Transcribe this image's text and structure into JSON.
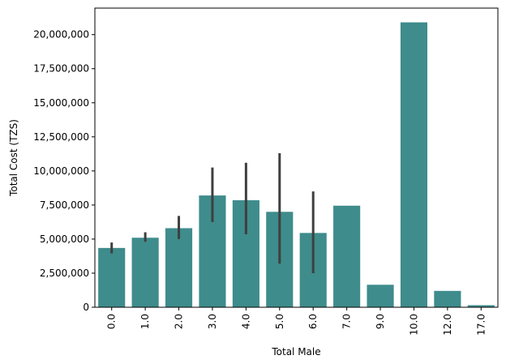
{
  "chart_data": {
    "type": "bar",
    "title": "",
    "xlabel": "Total Male",
    "ylabel": "Total Cost (TZS)",
    "categories": [
      "0.0",
      "1.0",
      "2.0",
      "3.0",
      "4.0",
      "5.0",
      "6.0",
      "7.0",
      "9.0",
      "10.0",
      "12.0",
      "17.0"
    ],
    "values": [
      4350000,
      5100000,
      5800000,
      8200000,
      7850000,
      7000000,
      5450000,
      7450000,
      1650000,
      20900000,
      1200000,
      150000
    ],
    "error_bars": [
      [
        3950000,
        4750000
      ],
      [
        4800000,
        5500000
      ],
      [
        5000000,
        6700000
      ],
      [
        6250000,
        10250000
      ],
      [
        5350000,
        10600000
      ],
      [
        3200000,
        11300000
      ],
      [
        2500000,
        8500000
      ],
      null,
      null,
      null,
      null,
      null
    ],
    "ylim": [
      0,
      21945000
    ],
    "yticks": [
      0,
      2500000,
      5000000,
      7500000,
      10000000,
      12500000,
      15000000,
      17500000,
      20000000
    ],
    "ytick_labels": [
      "0",
      "2,500,000",
      "5,000,000",
      "7,500,000",
      "10,000,000",
      "12,500,000",
      "15,000,000",
      "17,500,000",
      "20,000,000"
    ],
    "grid": false,
    "colors": {
      "bar": "#3f8c8c",
      "error_bar": "#3f3f3f",
      "axis": "#000000"
    }
  }
}
